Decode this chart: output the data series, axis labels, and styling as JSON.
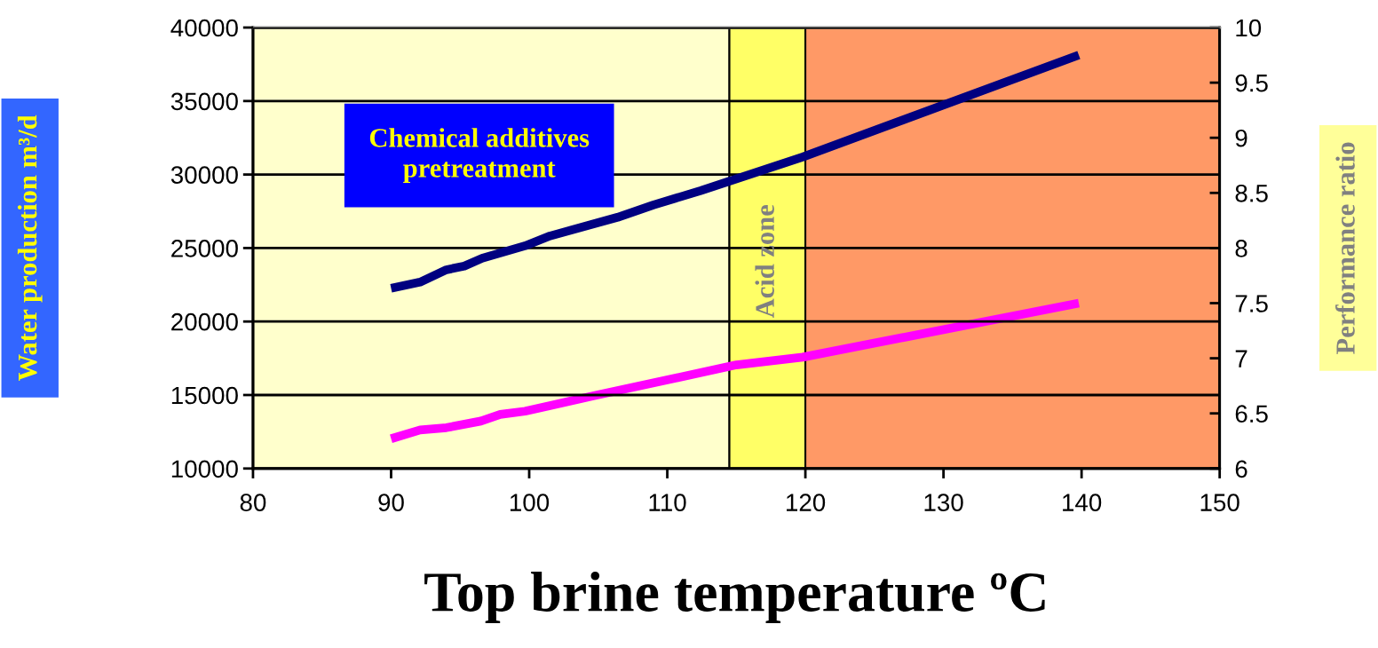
{
  "chart_data": {
    "type": "line",
    "xlabel": "Top brine temperature ºC",
    "ylabel": "Water production m³/d",
    "y2label": "Performance ratio",
    "xlim": [
      80,
      150
    ],
    "xticks": [
      80,
      90,
      100,
      110,
      120,
      130,
      140,
      150
    ],
    "ylim": [
      10000,
      40000
    ],
    "yticks": [
      10000,
      15000,
      20000,
      25000,
      30000,
      35000,
      40000
    ],
    "y2lim": [
      6,
      10
    ],
    "y2ticks": [
      6,
      6.5,
      7,
      7.5,
      8,
      8.5,
      9,
      9.5,
      10
    ],
    "grid": "y",
    "series": [
      {
        "color": "#000080",
        "x": [
          90,
          92.1,
          94.0,
          95.3,
          96.6,
          99.7,
          101.5,
          106.4,
          109.0,
          112.4,
          119.8,
          139.8
        ],
        "values": [
          22260,
          22680,
          23520,
          23770,
          24310,
          25150,
          25820,
          27090,
          27930,
          28900,
          31190,
          38130
        ]
      },
      {
        "color": "#ff00ff",
        "axis": "y2",
        "x": [
          90,
          92.1,
          94.0,
          96.5,
          97.9,
          99.7,
          101.5,
          104.7,
          115.0,
          119.8,
          139.8
        ],
        "values": [
          6.27,
          6.35,
          6.37,
          6.43,
          6.49,
          6.52,
          6.57,
          6.66,
          6.94,
          7.01,
          7.5
        ]
      }
    ],
    "bands": [
      {
        "axis": "x",
        "from": 80,
        "to": 114.5,
        "color": "#ffffcc"
      },
      {
        "axis": "x",
        "from": 114.5,
        "to": 120,
        "color": "#ffff66",
        "label": "Acid zone"
      },
      {
        "axis": "x",
        "from": 120,
        "to": 150,
        "color": "#ff9966"
      }
    ],
    "annotations": [
      "Chemical additives\npretreatment"
    ]
  }
}
